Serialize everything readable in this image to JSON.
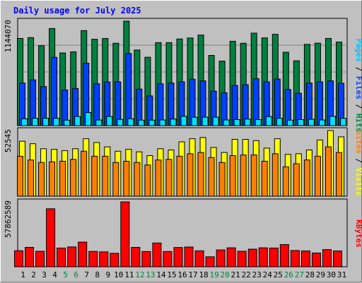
{
  "chart_data": {
    "type": "bar",
    "title": "Daily usage for July 2025",
    "days": [
      "1",
      "2",
      "3",
      "4",
      "5",
      "6",
      "7",
      "8",
      "9",
      "10",
      "11",
      "12",
      "13",
      "14",
      "15",
      "16",
      "17",
      "18",
      "19",
      "20",
      "21",
      "22",
      "23",
      "24",
      "25",
      "26",
      "27",
      "28",
      "29",
      "30",
      "31"
    ],
    "weekend_days": [
      "5",
      "6",
      "12",
      "13",
      "19",
      "20",
      "26",
      "27"
    ],
    "colors": {
      "hits": "#008040",
      "files": "#0040ff",
      "pages": "#00e0ff",
      "visits": "#ffff00",
      "sites": "#ff8000",
      "kbytes": "#ff0000",
      "weekday_label": "#000000",
      "weekend_label": "#008040",
      "separator": "#000000"
    },
    "panels": [
      {
        "max_label": "1144070",
        "ylim": [
          0,
          1144070
        ],
        "right_label": [
          {
            "text": "Pages",
            "color": "#00c0ff"
          },
          {
            "text": " / ",
            "color": "#000000"
          },
          {
            "text": "Files",
            "color": "#0040ff"
          },
          {
            "text": " / ",
            "color": "#000000"
          },
          {
            "text": "Hits",
            "color": "#008040"
          }
        ],
        "series": [
          {
            "name": "Hits",
            "color": "#008040",
            "values": [
              955000,
              964000,
              875000,
              1064000,
              796000,
              808000,
              1041000,
              946000,
              955000,
              902000,
              1144070,
              828000,
              749000,
              909000,
              909000,
              949000,
              960000,
              992000,
              769000,
              707000,
              924000,
              902000,
              1013000,
              961000,
              1000000,
              804000,
              710000,
              890000,
              903000,
              955000,
              915000
            ]
          },
          {
            "name": "Files",
            "color": "#0040ff",
            "values": [
              467000,
              502000,
              428000,
              748000,
              391000,
              407000,
              684000,
              458000,
              478000,
              480000,
              790000,
              400000,
              326000,
              458000,
              467000,
              480000,
              508000,
              490000,
              378000,
              360000,
              440000,
              448000,
              514000,
              480000,
              510000,
              396000,
              355000,
              467000,
              480000,
              490000,
              464000
            ]
          },
          {
            "name": "Pages",
            "color": "#00e0ff",
            "values": [
              75000,
              80000,
              80000,
              80000,
              60000,
              100000,
              143000,
              62000,
              100000,
              68000,
              75000,
              60000,
              60000,
              62000,
              72000,
              102000,
              92000,
              92000,
              92000,
              62000,
              66000,
              72000,
              66000,
              99000,
              80000,
              60000,
              66000,
              70000,
              62000,
              102000,
              80000
            ]
          }
        ]
      },
      {
        "max_label": "52545",
        "ylim": [
          0,
          52545
        ],
        "right_label": [
          {
            "text": "Sites",
            "color": "#ff8000"
          },
          {
            "text": " / ",
            "color": "#000000"
          },
          {
            "text": "Visits",
            "color": "#ffff00"
          }
        ],
        "series": [
          {
            "name": "Visits",
            "color": "#ffff00",
            "values": [
              44000,
              42000,
              38000,
              37500,
              36500,
              38000,
              46000,
              43000,
              39500,
              36000,
              37500,
              35500,
              32500,
              38000,
              37000,
              43500,
              46000,
              47000,
              39000,
              35000,
              45500,
              45500,
              44500,
              38500,
              46000,
              33500,
              34000,
              37000,
              45000,
              52545,
              47500
            ]
          },
          {
            "name": "Sites",
            "color": "#ff8000",
            "values": [
              32000,
              29000,
              27000,
              27500,
              28000,
              29500,
              36000,
              32000,
              32000,
              27000,
              28000,
              27000,
              25000,
              29000,
              29500,
              32000,
              34000,
              35000,
              31000,
              27000,
              32500,
              33000,
              33000,
              28000,
              34000,
              23500,
              26000,
              29000,
              32000,
              39500,
              35000
            ]
          }
        ]
      },
      {
        "max_label": "57862589",
        "ylim": [
          0,
          57862589
        ],
        "right_label": [
          {
            "text": "KBytes",
            "color": "#ff0000"
          }
        ],
        "series": [
          {
            "name": "KBytes",
            "color": "#ff0000",
            "values": [
              14300000,
              17300000,
              13800000,
              51700000,
              16700000,
              17700000,
              22000000,
              13700000,
              13300000,
              12000000,
              57862589,
              17300000,
              13600000,
              21200000,
              13600000,
              17200000,
              17600000,
              14200000,
              8900000,
              15000000,
              16900000,
              13800000,
              15700000,
              16900000,
              16700000,
              19800000,
              14500000,
              14100000,
              12300000,
              15300000,
              14100000
            ]
          }
        ]
      }
    ]
  }
}
